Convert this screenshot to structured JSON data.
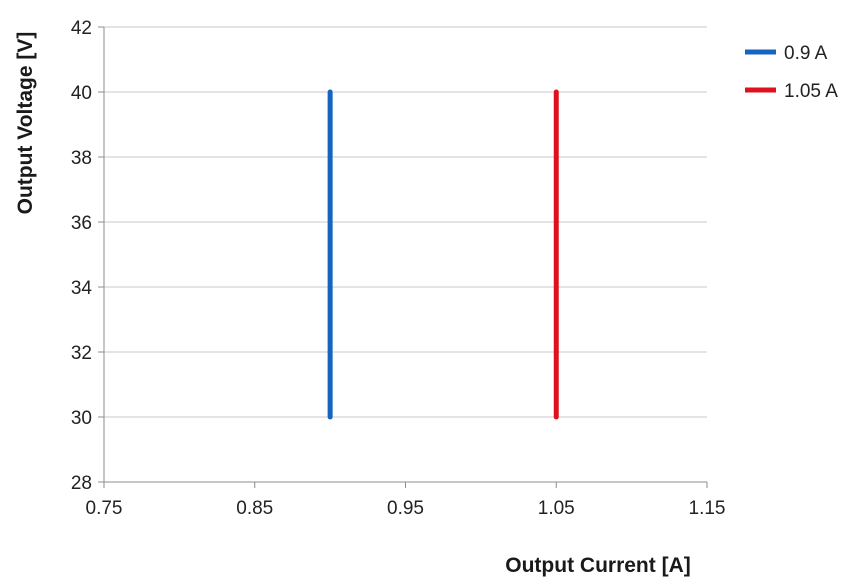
{
  "chart_data": {
    "type": "line",
    "xlabel": "Output Current [A]",
    "ylabel": "Output Voltage [V]",
    "xlim": [
      0.75,
      1.15
    ],
    "ylim": [
      28,
      42
    ],
    "x_ticks": [
      "0.75",
      "0.85",
      "0.95",
      "1.05",
      "1.15"
    ],
    "y_ticks": [
      "28",
      "30",
      "32",
      "34",
      "36",
      "38",
      "40",
      "42"
    ],
    "grid": "horizontal",
    "legend_position": "top-right",
    "series": [
      {
        "name": "0.9 A",
        "color": "#1565c0",
        "points": [
          {
            "x": 0.9,
            "y": 30
          },
          {
            "x": 0.9,
            "y": 40
          }
        ]
      },
      {
        "name": "1.05 A",
        "color": "#e0111f",
        "points": [
          {
            "x": 1.05,
            "y": 30
          },
          {
            "x": 1.05,
            "y": 40
          }
        ]
      }
    ]
  }
}
